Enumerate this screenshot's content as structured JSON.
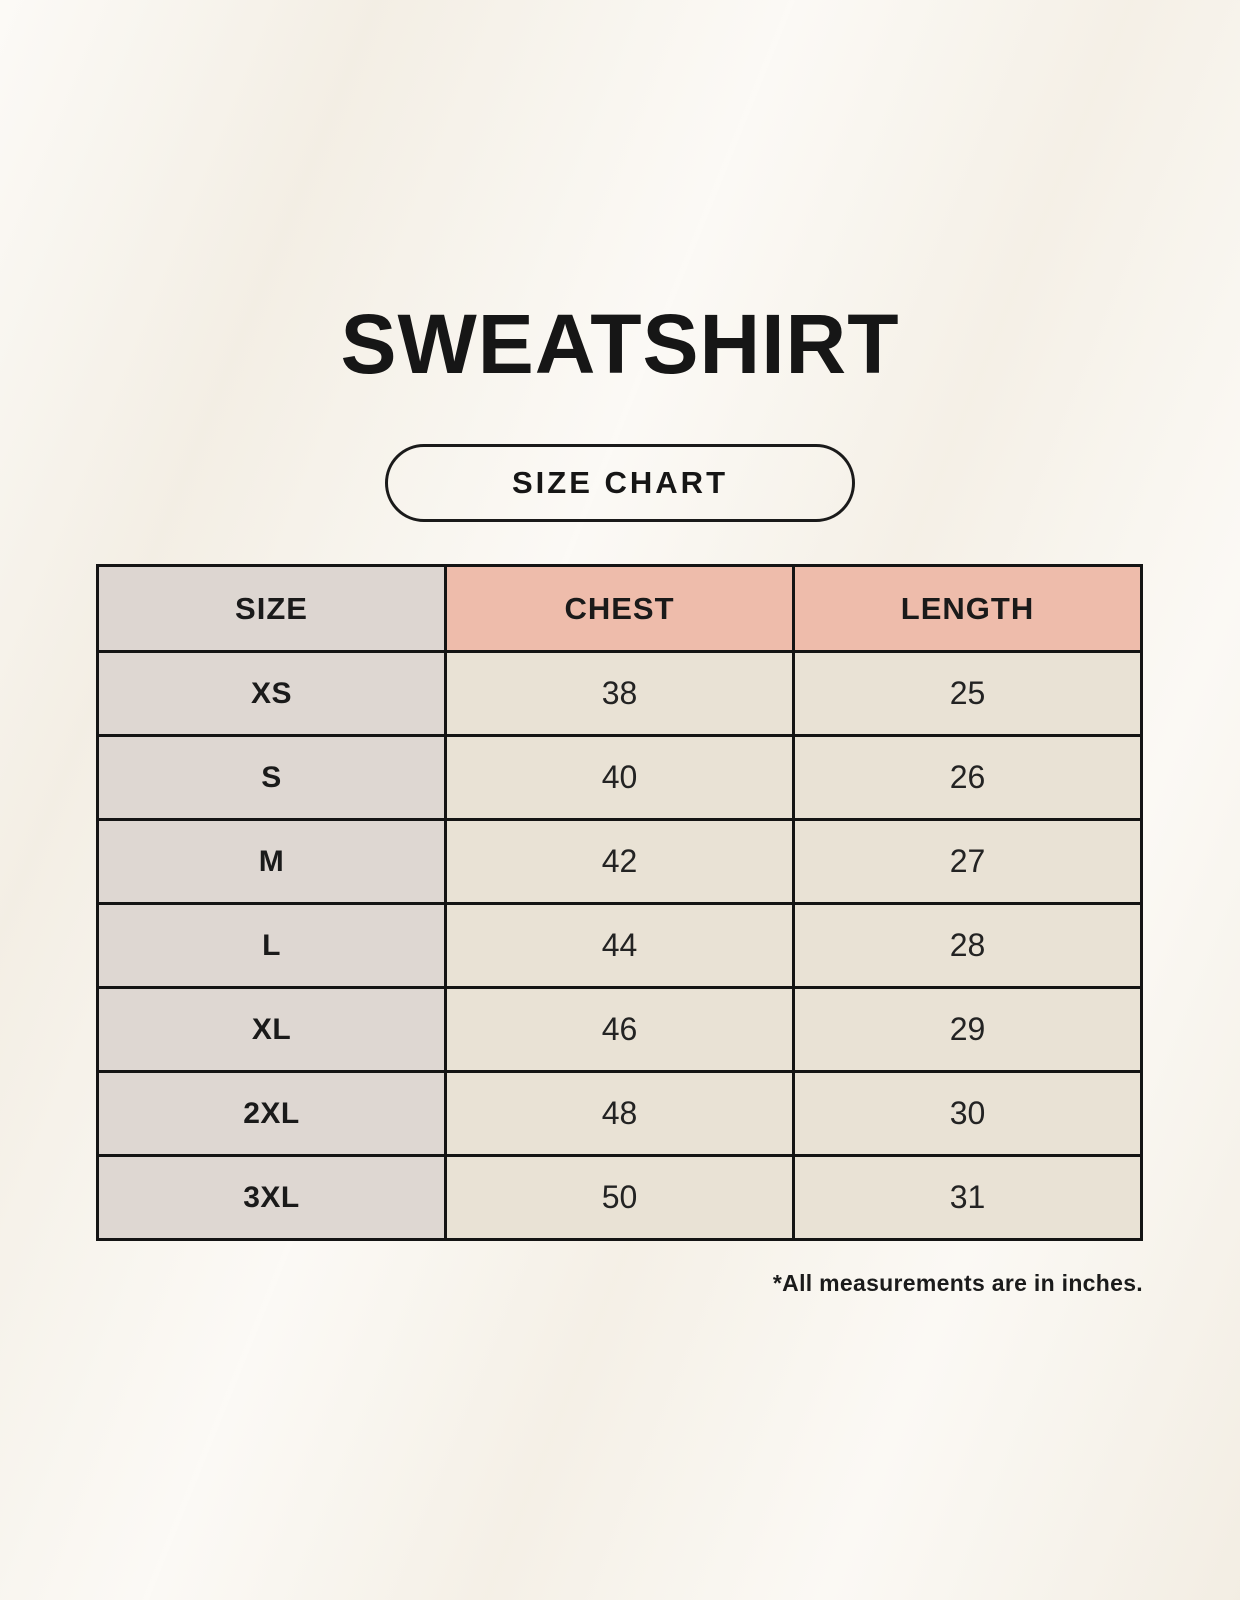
{
  "page": {
    "title": "SWEATSHIRT",
    "badge_label": "SIZE CHART",
    "footnote": "*All measurements are in inches."
  },
  "chart_data": {
    "type": "table",
    "title": "SWEATSHIRT",
    "subtitle": "SIZE CHART",
    "columns": [
      "SIZE",
      "CHEST",
      "LENGTH"
    ],
    "rows": [
      {
        "size": "XS",
        "chest": "38",
        "length": "25"
      },
      {
        "size": "S",
        "chest": "40",
        "length": "26"
      },
      {
        "size": "M",
        "chest": "42",
        "length": "27"
      },
      {
        "size": "L",
        "chest": "44",
        "length": "28"
      },
      {
        "size": "XL",
        "chest": "46",
        "length": "29"
      },
      {
        "size": "2XL",
        "chest": "48",
        "length": "30"
      },
      {
        "size": "3XL",
        "chest": "50",
        "length": "31"
      }
    ],
    "units": "inches",
    "note": "*All measurements are in inches."
  },
  "colors": {
    "background": "#f8f4ec",
    "header_accent": "#eebcab",
    "size_column": "#ded7d2",
    "value_cell": "#e9e2d5",
    "border": "#141414",
    "text": "#1a1a1a"
  }
}
